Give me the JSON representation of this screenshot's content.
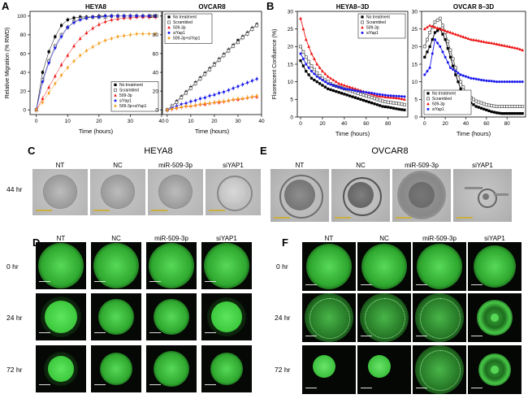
{
  "panels": {
    "A": "A",
    "B": "B",
    "C": "C",
    "D": "D",
    "E": "E",
    "F": "F"
  },
  "charts": {
    "heya8_migration": {
      "title": "HEYA8",
      "ylabel": "Relative Migration (% RWD)",
      "xlabel": "Time (hours)",
      "xticks": [
        "0",
        "10",
        "20",
        "30",
        "40"
      ],
      "yticks": [
        "0",
        "20",
        "40",
        "60",
        "80",
        "100"
      ],
      "legend": [
        "No treatment",
        "Scrambled",
        "509-3p",
        "siYap1",
        "509-3p+siYap1"
      ]
    },
    "ovcar8_migration": {
      "title": "OVCAR8",
      "xlabel": "Time (hours)",
      "xticks": [
        "0",
        "10",
        "20",
        "30",
        "40"
      ],
      "yticks": [
        "0",
        "20",
        "40",
        "60",
        "80",
        "100"
      ],
      "legend": [
        "No treatment",
        "Scrambled",
        "509-3p",
        "siYap1",
        "509-3p+siYap1"
      ]
    },
    "heya8_3d": {
      "title": "HEYA8–3D",
      "ylabel": "Fluorescent Confluence (%)",
      "xlabel": "Time (hours)",
      "xticks": [
        "0",
        "20",
        "40",
        "60",
        "80"
      ],
      "yticks": [
        "0",
        "5",
        "10",
        "15",
        "20",
        "25",
        "30"
      ],
      "legend": [
        "No treatment",
        "Scrambled",
        "509-3p",
        "siYap1"
      ]
    },
    "ovcar8_3d": {
      "title": "OVCAR 8–3D",
      "xlabel": "Time (hours)",
      "xticks": [
        "0",
        "20",
        "40",
        "60",
        "80"
      ],
      "yticks": [
        "0",
        "5",
        "10",
        "15",
        "20",
        "25",
        "30"
      ],
      "legend": [
        "No treatment",
        "Scrambled",
        "509-3p",
        "siYap1"
      ]
    }
  },
  "series_colors": {
    "no_treatment": "#000000",
    "scrambled": "#555555",
    "mir509": "#ee1111",
    "siyap1": "#1a1aee",
    "combo": "#f5a020"
  },
  "panel_c": {
    "title": "HEYA8",
    "columns": [
      "NT",
      "NC",
      "miR-509-3p",
      "siYAP1"
    ],
    "row_label": "44 hr"
  },
  "panel_e": {
    "title": "OVCAR8",
    "columns": [
      "NT",
      "NC",
      "miR-509-3p",
      "siYAP1"
    ]
  },
  "panel_d": {
    "columns": [
      "NT",
      "NC",
      "miR-509-3p",
      "siYAP1"
    ],
    "rows": [
      "0 hr",
      "24 hr",
      "72 hr"
    ]
  },
  "panel_f": {
    "columns": [
      "NT",
      "NC",
      "miR-509-3p",
      "siYAP1"
    ],
    "rows": [
      "0 hr",
      "24 hr",
      "72 hr"
    ]
  },
  "chart_data": [
    {
      "type": "line",
      "title": "HEYA8",
      "xlabel": "Time (hours)",
      "ylabel": "Relative Migration (% RWD)",
      "xlim": [
        -2,
        40
      ],
      "ylim": [
        -5,
        105
      ],
      "x": [
        0,
        2,
        4,
        6,
        8,
        10,
        12,
        14,
        16,
        18,
        20,
        22,
        24,
        26,
        28,
        30,
        32,
        34,
        36,
        38
      ],
      "series": [
        {
          "name": "No treatment",
          "values": [
            0,
            40,
            62,
            78,
            90,
            96,
            98,
            99,
            99,
            99,
            100,
            100,
            100,
            100,
            100,
            100,
            100,
            100,
            100,
            100
          ]
        },
        {
          "name": "Scrambled",
          "values": [
            0,
            32,
            52,
            68,
            80,
            88,
            94,
            97,
            98,
            99,
            99,
            99,
            100,
            100,
            100,
            100,
            100,
            100,
            100,
            100
          ]
        },
        {
          "name": "509-3p",
          "values": [
            0,
            12,
            24,
            36,
            48,
            58,
            68,
            76,
            82,
            87,
            91,
            94,
            96,
            97,
            98,
            98,
            99,
            99,
            99,
            99
          ]
        },
        {
          "name": "siYap1",
          "values": [
            0,
            30,
            50,
            66,
            78,
            88,
            93,
            96,
            98,
            99,
            99,
            100,
            100,
            100,
            100,
            100,
            100,
            100,
            100,
            100
          ]
        },
        {
          "name": "509-3p+siYap1",
          "values": [
            0,
            8,
            18,
            28,
            37,
            45,
            52,
            58,
            63,
            67,
            71,
            74,
            76,
            78,
            79,
            80,
            81,
            81,
            81,
            81
          ]
        }
      ]
    },
    {
      "type": "line",
      "title": "OVCAR8",
      "xlabel": "Time (hours)",
      "xlim": [
        -2,
        40
      ],
      "ylim": [
        -5,
        105
      ],
      "x": [
        0,
        2,
        4,
        6,
        8,
        10,
        12,
        14,
        16,
        18,
        20,
        22,
        24,
        26,
        28,
        30,
        32,
        34,
        36,
        38
      ],
      "series": [
        {
          "name": "No treatment",
          "values": [
            0,
            4,
            9,
            14,
            19,
            24,
            29,
            34,
            39,
            44,
            49,
            54,
            59,
            64,
            69,
            74,
            78,
            82,
            87,
            91
          ]
        },
        {
          "name": "Scrambled",
          "values": [
            0,
            4,
            8,
            13,
            18,
            23,
            28,
            33,
            38,
            43,
            48,
            53,
            58,
            63,
            68,
            72,
            77,
            81,
            86,
            90
          ]
        },
        {
          "name": "509-3p",
          "values": [
            0,
            1,
            2,
            3,
            4,
            4,
            5,
            6,
            6,
            7,
            8,
            8,
            9,
            10,
            11,
            11,
            12,
            13,
            14,
            14
          ]
        },
        {
          "name": "siYap1",
          "values": [
            0,
            2,
            4,
            6,
            7,
            9,
            10,
            12,
            13,
            15,
            16,
            18,
            19,
            21,
            23,
            25,
            27,
            29,
            31,
            33
          ]
        },
        {
          "name": "509-3p+siYap1",
          "values": [
            0,
            1,
            2,
            3,
            4,
            4,
            5,
            6,
            7,
            7,
            8,
            9,
            9,
            10,
            11,
            12,
            12,
            13,
            14,
            15
          ]
        }
      ]
    },
    {
      "type": "line",
      "title": "HEYA8–3D",
      "xlabel": "Time (hours)",
      "ylabel": "Fluorescent Confluence (%)",
      "xlim": [
        -3,
        98
      ],
      "ylim": [
        0,
        30
      ],
      "x": [
        0,
        5,
        10,
        15,
        20,
        25,
        30,
        35,
        40,
        45,
        50,
        55,
        60,
        65,
        70,
        75,
        80,
        85,
        90,
        95
      ],
      "series": [
        {
          "name": "No treatment",
          "values": [
            16,
            13,
            11,
            10,
            9,
            8,
            7.5,
            7,
            6.5,
            6,
            5.5,
            5,
            4.5,
            4,
            3.5,
            3,
            2.8,
            2.5,
            2.2,
            2
          ]
        },
        {
          "name": "Scrambled",
          "values": [
            20,
            17,
            14.5,
            12.5,
            11,
            10,
            9,
            8.5,
            8,
            7.5,
            7,
            6.5,
            6,
            5.5,
            5,
            4.5,
            4.2,
            4,
            3.8,
            3.5
          ]
        },
        {
          "name": "509-3p",
          "values": [
            28,
            22,
            18,
            15,
            13,
            11.5,
            10.5,
            9.5,
            9,
            8.5,
            8,
            7.5,
            7,
            6.5,
            6,
            5.8,
            5.6,
            5.5,
            5.3,
            5
          ]
        },
        {
          "name": "siYap1",
          "values": [
            18,
            15,
            13,
            11.5,
            10.5,
            9.5,
            9,
            8.5,
            8,
            7.8,
            7.5,
            7.2,
            7,
            6.8,
            6.5,
            6.3,
            6.1,
            6,
            5.9,
            5.8
          ]
        }
      ]
    },
    {
      "type": "line",
      "title": "OVCAR 8–3D",
      "xlabel": "Time (hours)",
      "xlim": [
        -3,
        98
      ],
      "ylim": [
        0,
        30
      ],
      "x": [
        0,
        5,
        10,
        15,
        20,
        25,
        30,
        35,
        40,
        45,
        50,
        55,
        60,
        65,
        70,
        75,
        80,
        85,
        90,
        95
      ],
      "series": [
        {
          "name": "No treatment",
          "values": [
            17,
            20,
            24,
            25,
            22,
            17,
            12,
            8,
            5,
            4,
            3,
            2.5,
            2,
            1.5,
            1.2,
            1,
            1,
            1,
            1,
            1
          ]
        },
        {
          "name": "Scrambled",
          "values": [
            20,
            24,
            27,
            28,
            24,
            19,
            14,
            10,
            7,
            5.5,
            4.5,
            4,
            3.5,
            3.2,
            3,
            3,
            3,
            3,
            3,
            3
          ]
        },
        {
          "name": "509-3p",
          "values": [
            25,
            26,
            25.5,
            25,
            24.5,
            24,
            23.5,
            23,
            22.5,
            22,
            21.8,
            21.5,
            21.2,
            21,
            20.7,
            20.4,
            20.1,
            19.8,
            19.5,
            19
          ]
        },
        {
          "name": "siYap1",
          "values": [
            12,
            14,
            22,
            20,
            17,
            14,
            13,
            12,
            11.5,
            11,
            10.8,
            10.5,
            10.3,
            10.2,
            10,
            10,
            10,
            10,
            10,
            10
          ]
        }
      ]
    }
  ]
}
